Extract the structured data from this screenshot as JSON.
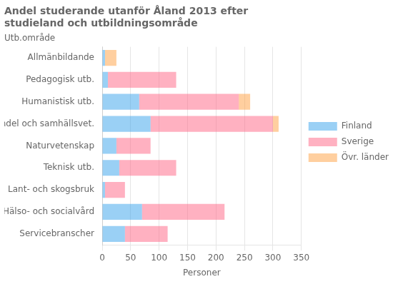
{
  "chart_data": {
    "type": "bar",
    "orientation": "horizontal",
    "stacked": true,
    "title": "Andel studerande utanför Åland 2013 efter\nstudieland och utbildningsområde",
    "xlabel": "Personer",
    "ylabel": "Utb.område",
    "categories": [
      "Allmänbildande",
      "Pedagogisk utb.",
      "Humanistisk utb.",
      "Handel och samhällsvet.",
      "Naturvetenskap",
      "Teknisk utb.",
      "Lant- och skogsbruk",
      "Hälso- och socialvård",
      "Servicebranscher"
    ],
    "series": [
      {
        "name": "Finland",
        "values": [
          5,
          10,
          65,
          85,
          25,
          30,
          5,
          70,
          40
        ]
      },
      {
        "name": "Sverige",
        "values": [
          0,
          120,
          175,
          215,
          60,
          100,
          35,
          145,
          75
        ]
      },
      {
        "name": "Övr. länder",
        "values": [
          20,
          0,
          20,
          10,
          0,
          0,
          0,
          0,
          0
        ]
      }
    ],
    "xlim": [
      0,
      350
    ],
    "xticks": [
      0,
      50,
      100,
      150,
      200,
      250,
      300,
      350
    ],
    "grid": "x",
    "legend": "right"
  }
}
